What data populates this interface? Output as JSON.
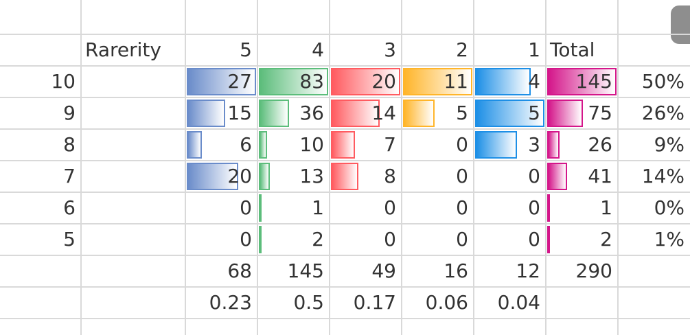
{
  "table": {
    "header": [
      "Rarerity",
      "5",
      "4",
      "3",
      "2",
      "1",
      "Total"
    ],
    "rows": [
      {
        "label": "10",
        "values": [
          27,
          83,
          20,
          11,
          4,
          145
        ],
        "percent": "50%"
      },
      {
        "label": "9",
        "values": [
          15,
          36,
          14,
          5,
          5,
          75
        ],
        "percent": "26%"
      },
      {
        "label": "8",
        "values": [
          6,
          10,
          7,
          0,
          3,
          26
        ],
        "percent": "9%"
      },
      {
        "label": "7",
        "values": [
          20,
          13,
          8,
          0,
          0,
          41
        ],
        "percent": "14%"
      },
      {
        "label": "6",
        "values": [
          0,
          1,
          0,
          0,
          0,
          1
        ],
        "percent": "0%"
      },
      {
        "label": "5",
        "values": [
          0,
          2,
          0,
          0,
          0,
          2
        ],
        "percent": "1%"
      }
    ],
    "totals": [
      68,
      145,
      49,
      16,
      12,
      290
    ],
    "ratios": [
      0.23,
      0.5,
      0.17,
      0.06,
      0.04
    ],
    "bar_colors": [
      "#6a8cca",
      "#5cbd7b",
      "#ff5b60",
      "#ffb52a",
      "#1d8fe6",
      "#d4168a"
    ]
  }
}
